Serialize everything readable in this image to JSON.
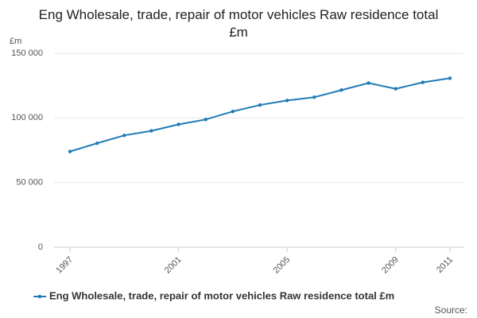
{
  "chart_data": {
    "type": "line",
    "title": "Eng Wholesale, trade, repair of motor vehicles Raw residence total £m",
    "y_label": "£m",
    "source": "Source:",
    "x": [
      1997,
      1998,
      1999,
      2000,
      2001,
      2002,
      2003,
      2004,
      2005,
      2006,
      2007,
      2008,
      2009,
      2010,
      2011
    ],
    "series": [
      {
        "name": "Eng Wholesale, trade, repair of motor vehicles Raw residence total £m",
        "color": "#1f7bb6",
        "values": [
          74000,
          80400,
          86500,
          90000,
          95000,
          98800,
          105000,
          110000,
          113500,
          116000,
          121500,
          127000,
          122500,
          127500,
          130700
        ]
      }
    ],
    "xlim": [
      1997,
      2011
    ],
    "xticks": [
      1997,
      2001,
      2005,
      2009,
      2011
    ],
    "ylim": [
      0,
      150000
    ],
    "yticks": [
      0,
      {
        "value": 50000,
        "label": "50 000"
      },
      {
        "value": 100000,
        "label": "100 000"
      },
      {
        "value": 150000,
        "label": "150 000"
      }
    ],
    "grid": true
  }
}
